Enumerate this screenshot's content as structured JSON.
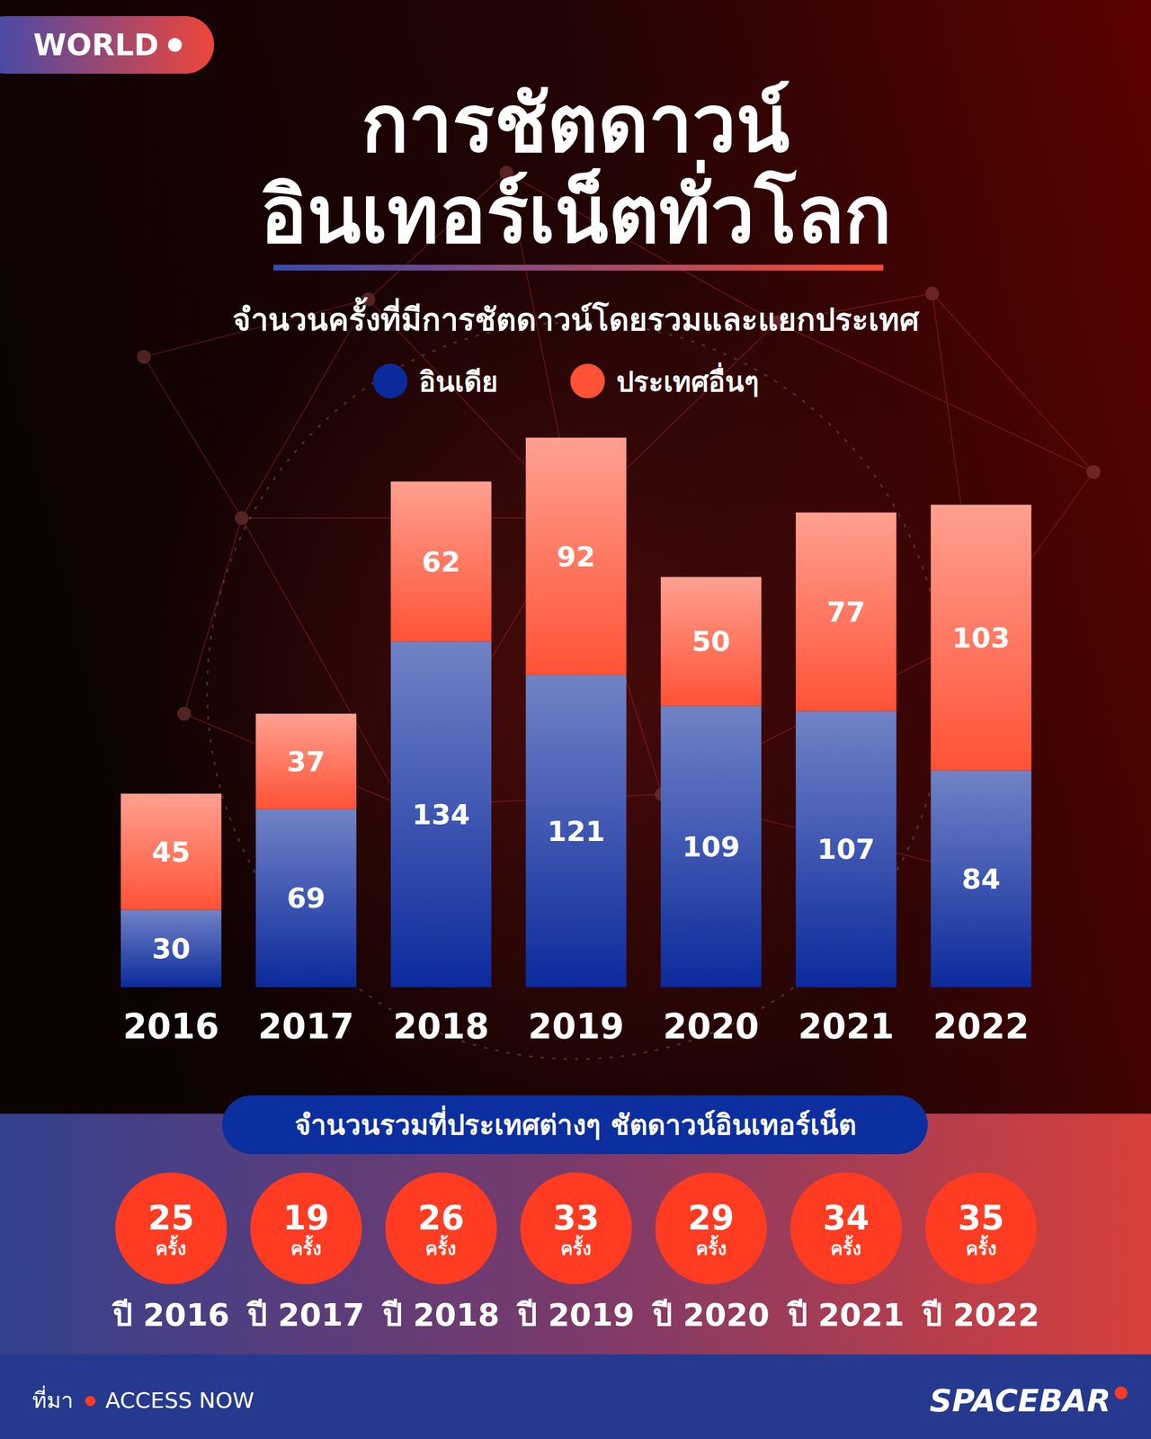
{
  "header": {
    "badge": "WORLD"
  },
  "chart_data": {
    "type": "bar",
    "stacked": true,
    "data_labels": true,
    "tick_labels": "x",
    "legend": "top",
    "title": "การชัตดาวน์\nอินเทอร์เน็ตทั่วโลก",
    "subtitle": "จำนวนครั้งที่มีการชัตดาวน์โดยรวมและแยกประเทศ",
    "categories": [
      "2016",
      "2017",
      "2018",
      "2019",
      "2020",
      "2021",
      "2022"
    ],
    "series": [
      {
        "name": "อินเดีย",
        "color": "#0b2a9c",
        "values": [
          30,
          69,
          134,
          121,
          109,
          107,
          84
        ]
      },
      {
        "name": "ประเทศอื่นๆ",
        "color": "#ff5236",
        "values": [
          45,
          37,
          62,
          92,
          50,
          77,
          103
        ]
      }
    ],
    "ylim": [
      0,
      220
    ]
  },
  "summary": {
    "title": "จำนวนรวมที่ประเทศต่างๆ ชัตดาวน์อินเทอร์เน็ต",
    "unit": "ครั้ง",
    "values": [
      25,
      19,
      26,
      33,
      29,
      34,
      35
    ],
    "labels": [
      "ปี 2016",
      "ปี 2017",
      "ปี 2018",
      "ปี 2019",
      "ปี 2020",
      "ปี 2021",
      "ปี 2022"
    ]
  },
  "footer": {
    "source_label": "ที่มา",
    "source": "ACCESS NOW",
    "brand": "SPACEBAR"
  }
}
